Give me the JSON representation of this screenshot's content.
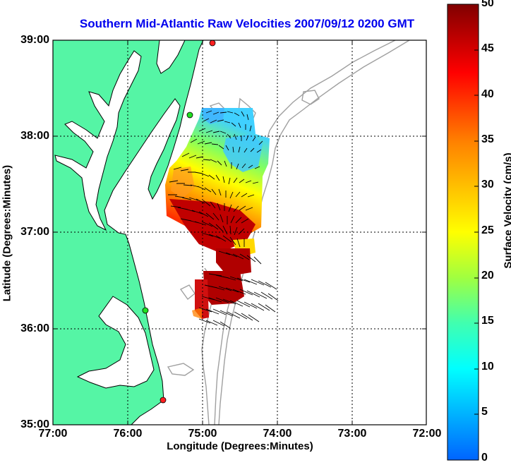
{
  "title": "Southern Mid-Atlantic Raw Velocities 2007/09/12 0200 GMT",
  "x_axis": {
    "label": "Longitude (Degrees:Minutes)",
    "ticks": [
      "77:00",
      "76:00",
      "75:00",
      "74:00",
      "73:00",
      "72:00"
    ]
  },
  "y_axis": {
    "label": "Latitude (Degrees:Minutes)",
    "ticks": [
      "39:00",
      "38:00",
      "37:00",
      "36:00",
      "35:00"
    ]
  },
  "colorbar": {
    "label": "Surface Velocity (cm/s)",
    "ticks": [
      "0",
      "5",
      "10",
      "15",
      "20",
      "25",
      "30",
      "35",
      "40",
      "45",
      "50"
    ],
    "min": 0,
    "max": 50
  },
  "colors": {
    "land": "#55f5a5",
    "water": "#ffffff",
    "title": "#0000ee",
    "bathymetry": "#a0a0a0",
    "station": "#ff2020"
  }
}
